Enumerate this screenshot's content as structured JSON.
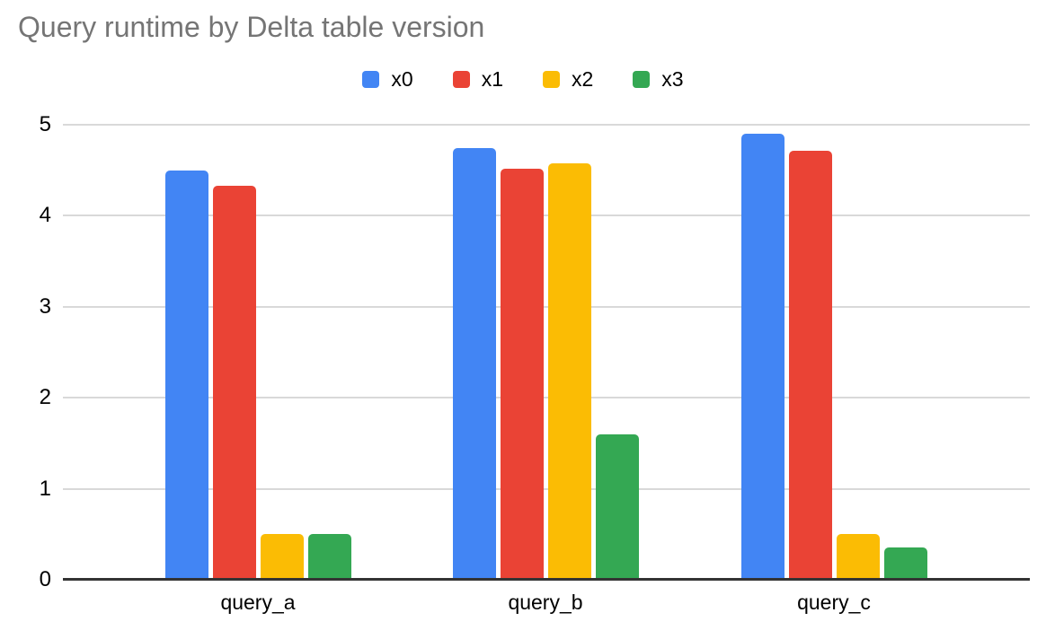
{
  "chart_data": {
    "type": "bar",
    "title": "Query runtime by Delta table version",
    "categories": [
      "query_a",
      "query_b",
      "query_c"
    ],
    "series": [
      {
        "name": "x0",
        "color": "#4285F4",
        "values": [
          4.5,
          4.74,
          4.9
        ]
      },
      {
        "name": "x1",
        "color": "#EA4335",
        "values": [
          4.33,
          4.52,
          4.71
        ]
      },
      {
        "name": "x2",
        "color": "#FBBC04",
        "values": [
          0.5,
          4.58,
          0.5
        ]
      },
      {
        "name": "x3",
        "color": "#34A853",
        "values": [
          0.5,
          1.6,
          0.36
        ]
      }
    ],
    "xlabel": "",
    "ylabel": "",
    "ylim": [
      0,
      5
    ],
    "yticks": [
      0,
      1,
      2,
      3,
      4,
      5
    ],
    "grid": true,
    "legend_position": "top",
    "colors": {
      "title": "#757575",
      "text": "#000000",
      "gridline": "#d9d9d9",
      "axis_line": "#333333",
      "background": "#ffffff"
    }
  }
}
